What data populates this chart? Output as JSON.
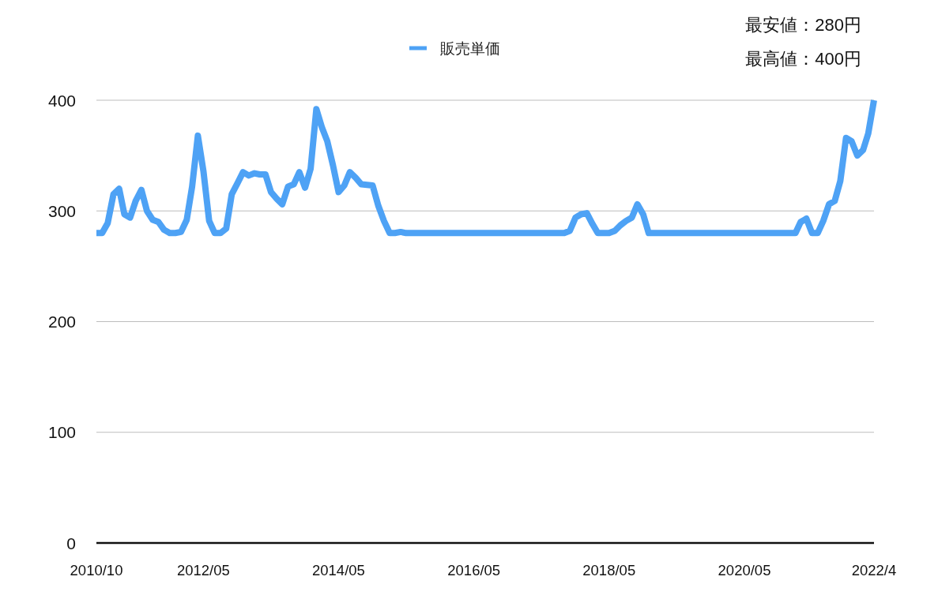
{
  "chart_data": {
    "type": "line",
    "annotations": [
      "最安値：280円",
      "最高値：400円"
    ],
    "x": [
      "2010-10",
      "2010-11",
      "2010-12",
      "2011-01",
      "2011-02",
      "2011-03",
      "2011-04",
      "2011-05",
      "2011-06",
      "2011-07",
      "2011-08",
      "2011-09",
      "2011-10",
      "2011-11",
      "2011-12",
      "2012-01",
      "2012-02",
      "2012-03",
      "2012-04",
      "2012-05",
      "2012-06",
      "2012-07",
      "2012-08",
      "2012-09",
      "2012-10",
      "2012-11",
      "2012-12",
      "2013-01",
      "2013-02",
      "2013-03",
      "2013-04",
      "2013-05",
      "2013-06",
      "2013-07",
      "2013-08",
      "2013-09",
      "2013-10",
      "2013-11",
      "2013-12",
      "2014-01",
      "2014-02",
      "2014-03",
      "2014-04",
      "2014-05",
      "2014-06",
      "2014-07",
      "2014-08",
      "2014-09",
      "2014-11",
      "2014-12",
      "2015-01",
      "2015-02",
      "2015-03",
      "2015-04",
      "2015-05",
      "2017-09",
      "2017-10",
      "2017-11",
      "2017-12",
      "2018-01",
      "2018-02",
      "2018-03",
      "2018-05",
      "2018-06",
      "2018-07",
      "2018-08",
      "2018-09",
      "2018-10",
      "2018-11",
      "2018-12",
      "2021-02",
      "2021-03",
      "2021-04",
      "2021-05",
      "2021-06",
      "2021-07",
      "2021-08",
      "2021-09",
      "2021-10",
      "2021-11",
      "2021-12",
      "2022-01",
      "2022-02",
      "2022-03",
      "2022-04"
    ],
    "series": [
      {
        "name": "販売単価",
        "color": "#4ea2f5",
        "values": [
          280,
          280,
          289,
          315,
          320,
          297,
          294,
          309,
          319,
          300,
          292,
          290,
          283,
          280,
          280,
          281,
          292,
          322,
          368,
          336,
          291,
          280,
          280,
          284,
          315,
          325,
          335,
          332,
          334,
          333,
          333,
          317,
          311,
          306,
          322,
          324,
          335,
          321,
          338,
          392,
          375,
          363,
          341,
          317,
          323,
          335,
          330,
          324,
          323,
          305,
          291,
          280,
          280,
          281,
          280,
          280,
          282,
          294,
          297,
          298,
          288,
          280,
          280,
          282,
          287,
          291,
          294,
          306,
          297,
          280,
          280,
          290,
          293,
          280,
          280,
          291,
          306,
          309,
          327,
          366,
          363,
          350,
          355,
          370,
          400
        ]
      }
    ],
    "xlim": [
      "2010-10",
      "2022-04"
    ],
    "xticks": [
      {
        "value": "2010-10",
        "label": "2010/10"
      },
      {
        "value": "2012-05",
        "label": "2012/05"
      },
      {
        "value": "2014-05",
        "label": "2014/05"
      },
      {
        "value": "2016-05",
        "label": "2016/05"
      },
      {
        "value": "2018-05",
        "label": "2018/05"
      },
      {
        "value": "2020-05",
        "label": "2020/05"
      },
      {
        "value": "2022-04",
        "label": "2022/4"
      }
    ],
    "ylim": [
      0,
      400
    ],
    "yticks": [
      0,
      100,
      200,
      300,
      400
    ],
    "grid": "y",
    "legend": "top"
  }
}
